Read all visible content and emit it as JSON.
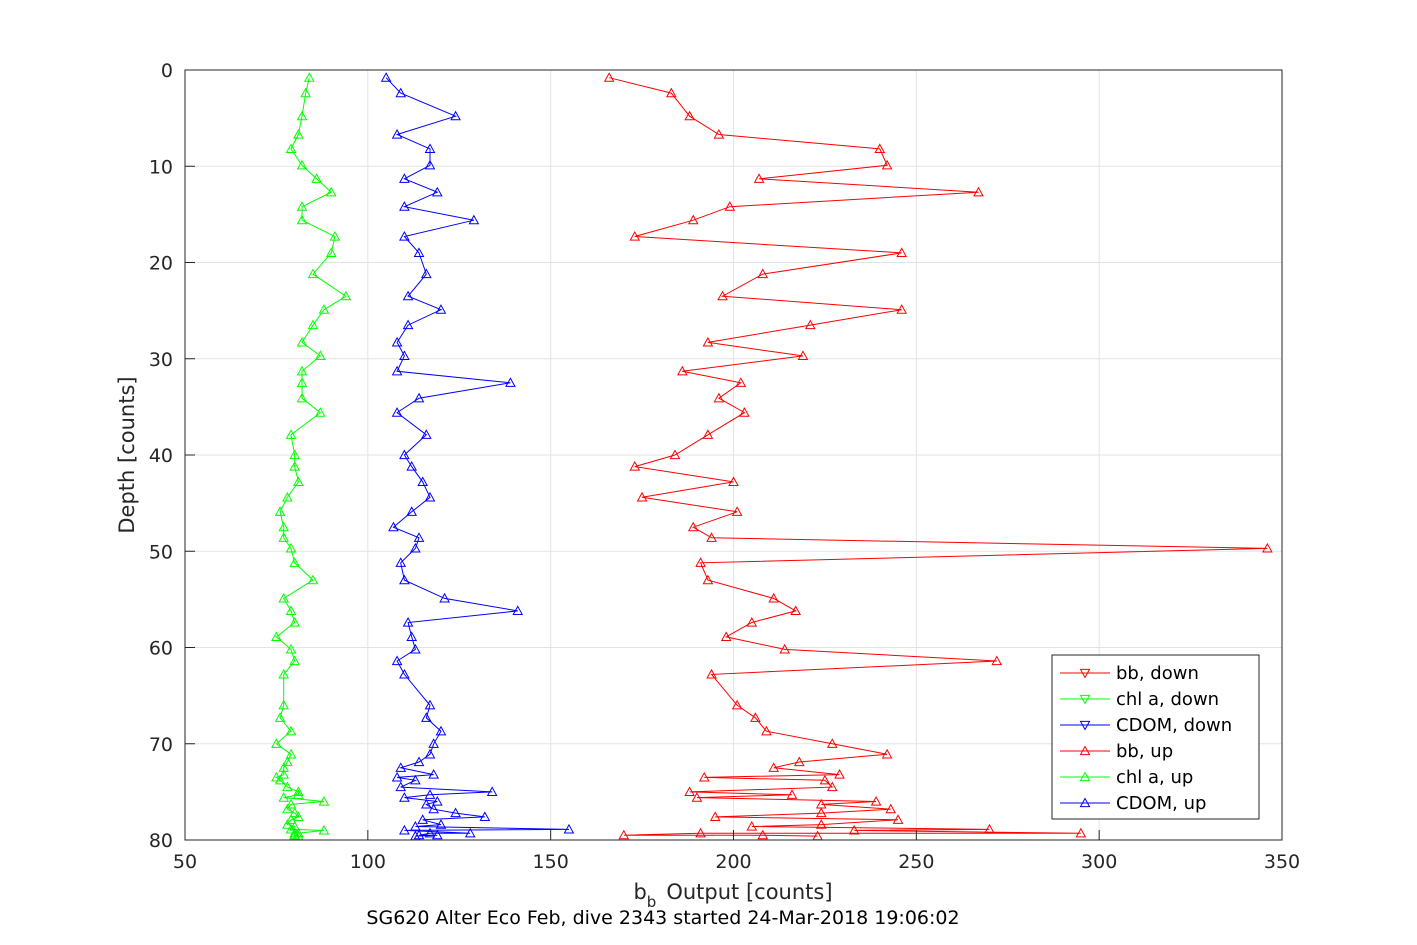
{
  "chart_data": {
    "type": "line",
    "caption": "SG620 Alter Eco Feb, dive 2343 started 24-Mar-2018 19:06:02",
    "xlabel": "Output [counts]",
    "xlabel_prefix": "b",
    "xlabel_sub": "b",
    "ylabel": "Depth [counts]",
    "xlim": [
      50,
      350
    ],
    "ylim": [
      0,
      80
    ],
    "y_reversed": true,
    "grid": true,
    "xticks": [
      "50",
      "100",
      "150",
      "200",
      "250",
      "300",
      "350"
    ],
    "yticks": [
      "0",
      "10",
      "20",
      "30",
      "40",
      "50",
      "60",
      "70",
      "80"
    ],
    "legend_location": "bottom-right",
    "legend": [
      {
        "label": "bb, down",
        "color": "#ff0000",
        "marker": "down"
      },
      {
        "label": "chl a, down",
        "color": "#00ff00",
        "marker": "down"
      },
      {
        "label": "CDOM, down",
        "color": "#0000ff",
        "marker": "down"
      },
      {
        "label": "bb, up",
        "color": "#ff0000",
        "marker": "up"
      },
      {
        "label": "chl a, up",
        "color": "#00ff00",
        "marker": "up"
      },
      {
        "label": "CDOM, up",
        "color": "#0000ff",
        "marker": "up"
      }
    ],
    "series": [
      {
        "name": "bb, up",
        "color": "#ff0000",
        "marker": "up",
        "points": [
          [
            166,
            0.8
          ],
          [
            183,
            2.4
          ],
          [
            188,
            4.8
          ],
          [
            196,
            6.7
          ],
          [
            240,
            8.2
          ],
          [
            242,
            9.9
          ],
          [
            207,
            11.3
          ],
          [
            267,
            12.7
          ],
          [
            199,
            14.2
          ],
          [
            189,
            15.6
          ],
          [
            173,
            17.3
          ],
          [
            246,
            19.0
          ],
          [
            208,
            21.2
          ],
          [
            197,
            23.5
          ],
          [
            246,
            24.9
          ],
          [
            221,
            26.5
          ],
          [
            193,
            28.3
          ],
          [
            219,
            29.7
          ],
          [
            186,
            31.3
          ],
          [
            202,
            32.5
          ],
          [
            196,
            34.1
          ],
          [
            203,
            35.6
          ],
          [
            193,
            37.9
          ],
          [
            184,
            40.0
          ],
          [
            173,
            41.2
          ],
          [
            200,
            42.8
          ],
          [
            175,
            44.4
          ],
          [
            201,
            45.9
          ],
          [
            189,
            47.5
          ],
          [
            194,
            48.6
          ],
          [
            346,
            49.7
          ],
          [
            191,
            51.2
          ],
          [
            193,
            53.0
          ],
          [
            211,
            54.9
          ],
          [
            217,
            56.2
          ],
          [
            205,
            57.4
          ],
          [
            198,
            58.9
          ],
          [
            214,
            60.2
          ],
          [
            272,
            61.4
          ],
          [
            194,
            62.8
          ],
          [
            201,
            66.0
          ],
          [
            206,
            67.3
          ],
          [
            209,
            68.7
          ],
          [
            227,
            70.0
          ],
          [
            242,
            71.1
          ],
          [
            218,
            71.9
          ],
          [
            211,
            72.5
          ],
          [
            229,
            73.2
          ],
          [
            192,
            73.5
          ],
          [
            225,
            73.8
          ],
          [
            227,
            74.5
          ],
          [
            188,
            75.0
          ],
          [
            216,
            75.3
          ],
          [
            190,
            75.6
          ],
          [
            239,
            76.0
          ],
          [
            224,
            76.3
          ],
          [
            243,
            76.8
          ],
          [
            224,
            77.2
          ],
          [
            195,
            77.6
          ],
          [
            245,
            77.9
          ],
          [
            224,
            78.4
          ],
          [
            205,
            78.6
          ],
          [
            270,
            78.9
          ],
          [
            233,
            79.0
          ],
          [
            295,
            79.3
          ],
          [
            191,
            79.3
          ],
          [
            170,
            79.5
          ],
          [
            208,
            79.5
          ],
          [
            223,
            79.6
          ]
        ]
      },
      {
        "name": "chl a, up",
        "color": "#00ff00",
        "marker": "up",
        "points": [
          [
            84,
            0.8
          ],
          [
            83,
            2.4
          ],
          [
            82,
            4.8
          ],
          [
            81,
            6.7
          ],
          [
            79,
            8.2
          ],
          [
            82,
            9.9
          ],
          [
            86,
            11.3
          ],
          [
            90,
            12.7
          ],
          [
            82,
            14.2
          ],
          [
            82,
            15.6
          ],
          [
            91,
            17.3
          ],
          [
            90,
            19.0
          ],
          [
            85,
            21.2
          ],
          [
            94,
            23.5
          ],
          [
            88,
            24.9
          ],
          [
            85,
            26.5
          ],
          [
            82,
            28.3
          ],
          [
            87,
            29.7
          ],
          [
            82,
            31.3
          ],
          [
            82,
            32.5
          ],
          [
            82,
            34.1
          ],
          [
            87,
            35.6
          ],
          [
            79,
            37.9
          ],
          [
            80,
            40.0
          ],
          [
            80,
            41.2
          ],
          [
            81,
            42.8
          ],
          [
            78,
            44.4
          ],
          [
            76,
            45.9
          ],
          [
            77,
            47.5
          ],
          [
            77,
            48.6
          ],
          [
            79,
            49.7
          ],
          [
            80,
            51.2
          ],
          [
            85,
            53.0
          ],
          [
            77,
            54.9
          ],
          [
            79,
            56.2
          ],
          [
            80,
            57.4
          ],
          [
            75,
            58.9
          ],
          [
            79,
            60.2
          ],
          [
            80,
            61.4
          ],
          [
            77,
            62.8
          ],
          [
            77,
            66.0
          ],
          [
            76,
            67.3
          ],
          [
            79,
            68.7
          ],
          [
            75,
            70.0
          ],
          [
            79,
            71.1
          ],
          [
            78,
            71.9
          ],
          [
            77,
            72.5
          ],
          [
            77,
            73.2
          ],
          [
            75,
            73.5
          ],
          [
            76,
            73.8
          ],
          [
            78,
            74.5
          ],
          [
            81,
            75.0
          ],
          [
            81,
            75.3
          ],
          [
            77,
            75.6
          ],
          [
            88,
            76.0
          ],
          [
            79,
            76.3
          ],
          [
            78,
            76.8
          ],
          [
            80,
            77.2
          ],
          [
            81,
            77.6
          ],
          [
            79,
            77.9
          ],
          [
            78,
            78.4
          ],
          [
            80,
            78.6
          ],
          [
            79,
            78.9
          ],
          [
            88,
            79.0
          ],
          [
            81,
            79.3
          ],
          [
            80,
            79.3
          ],
          [
            80,
            79.5
          ],
          [
            80,
            79.5
          ],
          [
            81,
            79.6
          ]
        ]
      },
      {
        "name": "CDOM, up",
        "color": "#0000ff",
        "marker": "up",
        "points": [
          [
            105,
            0.8
          ],
          [
            109,
            2.4
          ],
          [
            124,
            4.8
          ],
          [
            108,
            6.7
          ],
          [
            117,
            8.2
          ],
          [
            117,
            9.9
          ],
          [
            110,
            11.3
          ],
          [
            119,
            12.7
          ],
          [
            110,
            14.2
          ],
          [
            129,
            15.6
          ],
          [
            110,
            17.3
          ],
          [
            114,
            19.0
          ],
          [
            116,
            21.2
          ],
          [
            111,
            23.5
          ],
          [
            120,
            24.9
          ],
          [
            111,
            26.5
          ],
          [
            108,
            28.3
          ],
          [
            110,
            29.7
          ],
          [
            108,
            31.3
          ],
          [
            139,
            32.5
          ],
          [
            114,
            34.1
          ],
          [
            108,
            35.6
          ],
          [
            116,
            37.9
          ],
          [
            110,
            40.0
          ],
          [
            112,
            41.2
          ],
          [
            115,
            42.8
          ],
          [
            117,
            44.4
          ],
          [
            112,
            45.9
          ],
          [
            107,
            47.5
          ],
          [
            114,
            48.6
          ],
          [
            113,
            49.7
          ],
          [
            109,
            51.2
          ],
          [
            110,
            53.0
          ],
          [
            121,
            54.9
          ],
          [
            141,
            56.2
          ],
          [
            111,
            57.4
          ],
          [
            112,
            58.9
          ],
          [
            113,
            60.2
          ],
          [
            108,
            61.4
          ],
          [
            110,
            62.8
          ],
          [
            117,
            66.0
          ],
          [
            116,
            67.3
          ],
          [
            120,
            68.7
          ],
          [
            118,
            70.0
          ],
          [
            117,
            71.1
          ],
          [
            114,
            71.9
          ],
          [
            109,
            72.5
          ],
          [
            118,
            73.2
          ],
          [
            108,
            73.5
          ],
          [
            113,
            73.8
          ],
          [
            109,
            74.5
          ],
          [
            134,
            75.0
          ],
          [
            117,
            75.3
          ],
          [
            110,
            75.6
          ],
          [
            119,
            76.0
          ],
          [
            116,
            76.3
          ],
          [
            118,
            76.8
          ],
          [
            124,
            77.2
          ],
          [
            132,
            77.6
          ],
          [
            115,
            77.9
          ],
          [
            120,
            78.4
          ],
          [
            113,
            78.6
          ],
          [
            155,
            78.9
          ],
          [
            110,
            79.0
          ],
          [
            128,
            79.3
          ],
          [
            117,
            79.3
          ],
          [
            114,
            79.5
          ],
          [
            119,
            79.5
          ],
          [
            113,
            79.6
          ]
        ]
      }
    ]
  }
}
